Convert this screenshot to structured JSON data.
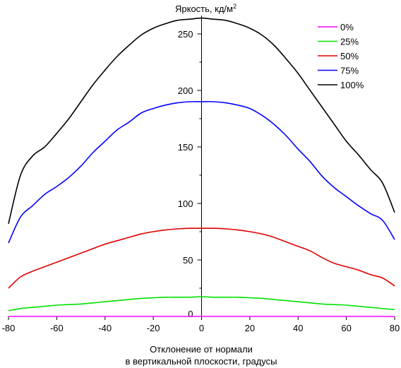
{
  "chart_data": {
    "type": "line",
    "title": "",
    "ylabel": "Яркость, кд/м",
    "ylabel_superscript": "2",
    "xlabel_line1": "Отклонение от нормали",
    "xlabel_line2": "в вертикальной плоскости, градусы",
    "xlim": [
      -80,
      80
    ],
    "ylim": [
      0,
      265
    ],
    "xticks": [
      -80,
      -60,
      -40,
      -20,
      0,
      20,
      40,
      60,
      80
    ],
    "yticks": [
      50,
      100,
      150,
      200,
      250
    ],
    "grid": false,
    "legend_position": "top-right",
    "x": [
      -80,
      -75,
      -70,
      -65,
      -60,
      -55,
      -50,
      -45,
      -40,
      -35,
      -30,
      -25,
      -20,
      -15,
      -10,
      -5,
      0,
      5,
      10,
      15,
      20,
      25,
      30,
      35,
      40,
      45,
      50,
      55,
      60,
      65,
      70,
      75,
      80
    ],
    "series": [
      {
        "name": "0%",
        "color": "#ff00ff",
        "values": [
          0,
          0,
          0,
          0,
          0,
          0,
          0,
          0,
          0,
          0,
          0,
          0,
          0,
          0,
          0,
          0,
          0,
          0,
          0,
          0,
          0,
          0,
          0,
          0,
          0,
          0,
          0,
          0,
          0,
          0,
          0,
          0,
          0
        ]
      },
      {
        "name": "25%",
        "color": "#00e000",
        "values": [
          5,
          7,
          8,
          9,
          10,
          10.5,
          11,
          12,
          13,
          14,
          15,
          16,
          16.5,
          17,
          17,
          17,
          17.5,
          17,
          17,
          17,
          16.5,
          16,
          15,
          14,
          13,
          12,
          11,
          10.5,
          10,
          9,
          8,
          7,
          6
        ]
      },
      {
        "name": "50%",
        "color": "#e00000",
        "values": [
          25,
          35,
          40,
          44,
          48,
          52,
          56,
          60,
          64,
          67,
          70,
          73,
          75,
          76.5,
          77.5,
          78,
          78,
          78,
          77.5,
          76.5,
          75,
          73,
          70,
          66,
          62,
          58,
          52,
          47,
          44,
          41,
          37,
          34,
          27
        ]
      },
      {
        "name": "75%",
        "color": "#0000ff",
        "values": [
          65,
          88,
          98,
          108,
          115,
          123,
          133,
          145,
          155,
          165,
          172,
          180,
          184,
          187,
          189,
          190,
          190,
          190,
          189,
          187,
          184,
          178,
          170,
          160,
          148,
          137,
          124,
          114,
          106,
          98,
          91,
          85,
          68
        ]
      },
      {
        "name": "100%",
        "color": "#000000",
        "values": [
          82,
          125,
          142,
          150,
          162,
          175,
          190,
          205,
          218,
          230,
          240,
          249,
          255,
          259,
          262,
          263,
          264,
          263,
          262,
          259,
          255,
          249,
          240,
          228,
          215,
          200,
          185,
          170,
          155,
          143,
          130,
          118,
          92
        ]
      }
    ]
  }
}
